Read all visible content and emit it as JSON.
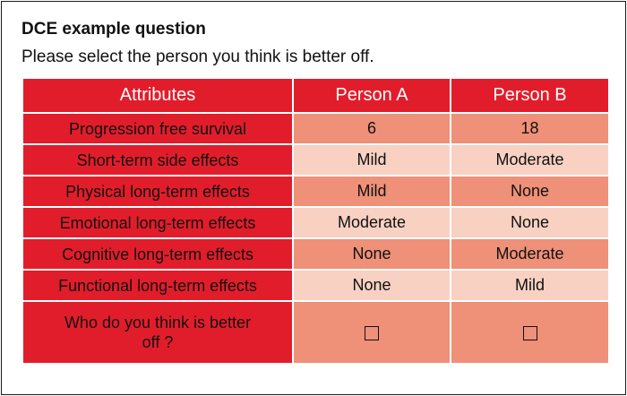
{
  "title": "DCE example question",
  "subtitle": "Please select the person you think is better off.",
  "colors": {
    "header_red": "#e21d2b",
    "shade_dark": "#ef9078",
    "shade_light": "#f8d1c3"
  },
  "table": {
    "headers": [
      "Attributes",
      "Person A",
      "Person B"
    ],
    "rows": [
      {
        "attribute": "Progression free survival",
        "person_a": "6",
        "person_b": "18"
      },
      {
        "attribute": "Short-term side effects",
        "person_a": "Mild",
        "person_b": "Moderate"
      },
      {
        "attribute": "Physical long-term effects",
        "person_a": "Mild",
        "person_b": "None"
      },
      {
        "attribute": "Emotional long-term effects",
        "person_a": "Moderate",
        "person_b": "None"
      },
      {
        "attribute": "Cognitive long-term effects",
        "person_a": "None",
        "person_b": "Moderate"
      },
      {
        "attribute": "Functional long-term effects",
        "person_a": "None",
        "person_b": "Mild"
      }
    ],
    "question": "Who do you think is better off ?",
    "choice_icon": "checkbox-empty-icon"
  }
}
